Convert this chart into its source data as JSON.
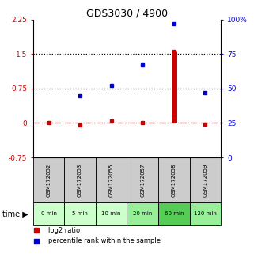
{
  "title": "GDS3030 / 4900",
  "samples": [
    "GSM172052",
    "GSM172053",
    "GSM172055",
    "GSM172057",
    "GSM172058",
    "GSM172059"
  ],
  "time_labels": [
    "0 min",
    "5 min",
    "10 min",
    "20 min",
    "60 min",
    "120 min"
  ],
  "log2_ratio": [
    0.0,
    -0.05,
    0.05,
    0.0,
    1.55,
    -0.02
  ],
  "percentile_rank": [
    null,
    45,
    52,
    67,
    97,
    47
  ],
  "ylim_left": [
    -0.75,
    2.25
  ],
  "ylim_right": [
    0,
    100
  ],
  "left_ticks": [
    -0.75,
    0,
    0.75,
    1.5,
    2.25
  ],
  "right_ticks": [
    0,
    25,
    50,
    75,
    100
  ],
  "left_tick_labels": [
    "-0.75",
    "0",
    "0.75",
    "1.5",
    "2.25"
  ],
  "right_tick_labels": [
    "0",
    "25",
    "50",
    "75",
    "100%"
  ],
  "hlines_black": [
    0.75,
    1.5
  ],
  "hline_red": 0.0,
  "bar_color": "#cc0000",
  "dot_color": "#0000cc",
  "sample_bg_color": "#cccccc",
  "time_bg_colors": [
    "#ccffcc",
    "#ccffcc",
    "#ccffcc",
    "#99ee99",
    "#55cc55",
    "#99ee99"
  ],
  "legend_labels": [
    "log2 ratio",
    "percentile rank within the sample"
  ],
  "legend_colors": [
    "#cc0000",
    "#0000cc"
  ],
  "bar_idx": 4
}
